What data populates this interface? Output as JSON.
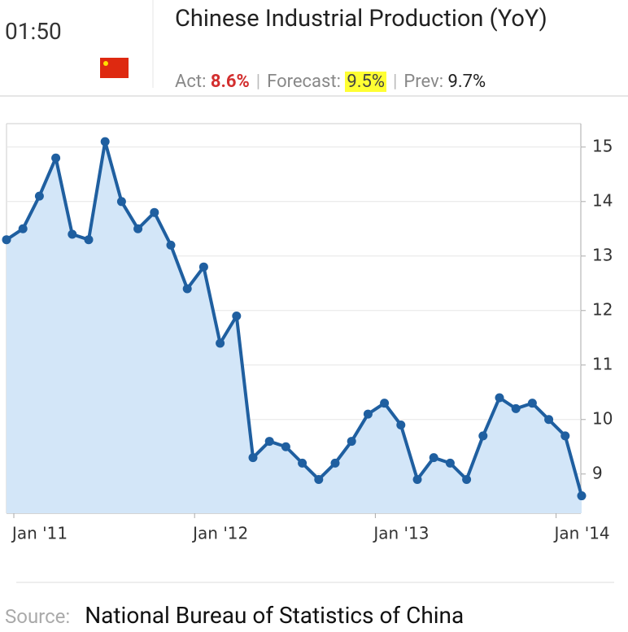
{
  "header": {
    "time": "01:50",
    "title": "Chinese Industrial Production (YoY)",
    "actual_label": "Act:",
    "actual": "8.6%",
    "forecast_label": "Forecast:",
    "forecast": "9.5%",
    "prev_label": "Prev:",
    "prev": "9.7%"
  },
  "chart_data": {
    "type": "line",
    "categories": [
      "Jan '11",
      null,
      null,
      null,
      null,
      null,
      null,
      null,
      null,
      null,
      null,
      "Jan '12",
      null,
      null,
      null,
      null,
      null,
      null,
      null,
      null,
      null,
      null,
      "Jan '13",
      null,
      null,
      null,
      null,
      null,
      null,
      null,
      null,
      null,
      null,
      "Jan '14",
      null,
      null
    ],
    "series": [
      {
        "name": "Industrial Production YoY",
        "color": "#1f5fa0",
        "values": [
          13.3,
          13.5,
          14.1,
          14.8,
          13.4,
          13.3,
          15.1,
          14.0,
          13.5,
          13.8,
          13.2,
          12.4,
          12.8,
          11.4,
          11.9,
          9.3,
          9.6,
          9.5,
          9.2,
          8.9,
          9.2,
          9.6,
          10.1,
          10.3,
          9.9,
          8.9,
          9.3,
          9.2,
          8.9,
          9.7,
          10.4,
          10.2,
          10.3,
          10.0,
          9.7,
          8.6
        ]
      }
    ],
    "ylim": [
      8.28,
      15.43
    ],
    "yticks": [
      9,
      10,
      11,
      12,
      13,
      14,
      15
    ],
    "grid": true,
    "area_color": "#d3e6f8"
  },
  "footer": {
    "source_label": "Source:",
    "source": "National Bureau of Statistics of China"
  }
}
